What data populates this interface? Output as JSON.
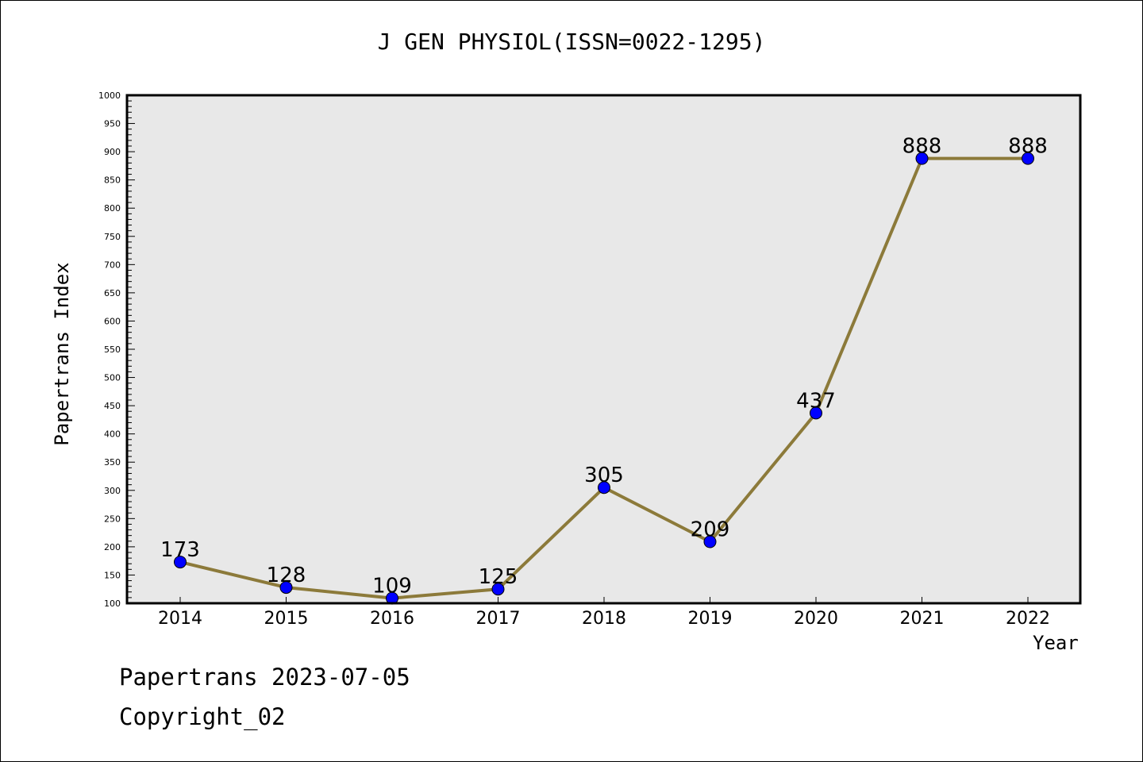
{
  "chart_data": {
    "type": "line",
    "title": "J GEN PHYSIOL(ISSN=0022-1295)",
    "xlabel": "Year",
    "ylabel": "Papertrans Index",
    "categories": [
      "2014",
      "2015",
      "2016",
      "2017",
      "2018",
      "2019",
      "2020",
      "2021",
      "2022"
    ],
    "series": [
      {
        "values": [
          173,
          128,
          109,
          125,
          305,
          209,
          437,
          888,
          888
        ]
      }
    ],
    "data_labels": [
      "173",
      "128",
      "109",
      "125",
      "305",
      "209",
      "437",
      "888",
      "888"
    ],
    "ylim": [
      100,
      1000
    ],
    "yticks": [
      "100",
      "150",
      "200",
      "250",
      "300",
      "350",
      "400",
      "450",
      "500",
      "550",
      "600",
      "650",
      "700",
      "750",
      "800",
      "850",
      "900",
      "950",
      "1000"
    ],
    "grid": false,
    "plot_background": "#e8e8e8",
    "line_color": "#8c7a3a",
    "marker_color": "#0000ff"
  },
  "footer": {
    "date_text": "Papertrans 2023-07-05",
    "copyright_text": "Copyright_02"
  }
}
